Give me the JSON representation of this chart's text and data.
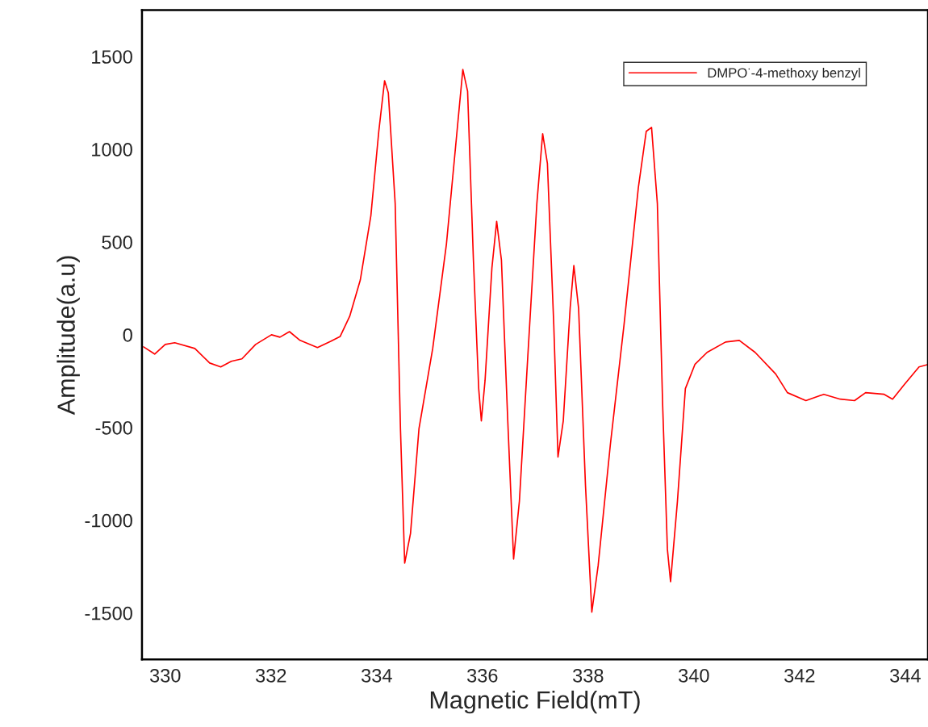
{
  "chart_data": {
    "type": "line",
    "xlabel": "Magnetic Field(mT)",
    "ylabel": "Amplitude(a.u)",
    "x": [
      329.59,
      329.8,
      330.0,
      330.18,
      330.56,
      330.84,
      331.05,
      331.25,
      331.45,
      331.71,
      332.01,
      332.17,
      332.35,
      332.55,
      332.88,
      333.13,
      333.31,
      333.49,
      333.69,
      333.89,
      334.04,
      334.15,
      334.22,
      334.35,
      334.45,
      334.53,
      334.64,
      334.8,
      335.06,
      335.32,
      335.52,
      335.63,
      335.72,
      335.83,
      335.93,
      335.98,
      336.05,
      336.18,
      336.27,
      336.36,
      336.48,
      336.59,
      336.7,
      336.85,
      337.03,
      337.14,
      337.23,
      337.35,
      337.43,
      337.53,
      337.66,
      337.73,
      337.82,
      337.95,
      338.07,
      338.19,
      338.42,
      338.68,
      338.95,
      339.1,
      339.2,
      339.31,
      339.41,
      339.5,
      339.56,
      339.69,
      339.84,
      340.02,
      340.25,
      340.6,
      340.86,
      341.16,
      341.55,
      341.77,
      342.12,
      342.46,
      342.77,
      343.04,
      343.25,
      343.6,
      343.76,
      343.98,
      344.26,
      344.43
    ],
    "series": [
      {
        "name": "DMPO$^{·}$-4-methoxy benzyl",
        "color": "#ff0000",
        "values": [
          -65,
          -104,
          -52,
          -43,
          -74,
          -152,
          -173,
          -143,
          -130,
          -52,
          0,
          -13,
          17,
          -30,
          -69,
          -35,
          -9,
          100,
          295,
          642,
          1097,
          1370,
          1305,
          707,
          -507,
          -1231,
          -1071,
          -507,
          -74,
          490,
          1097,
          1430,
          1313,
          403,
          -290,
          -464,
          -247,
          360,
          611,
          403,
          -464,
          -1209,
          -897,
          -160,
          707,
          1084,
          923,
          56,
          -659,
          -464,
          143,
          373,
          143,
          -811,
          -1495,
          -1244,
          -594,
          56,
          793,
          1097,
          1118,
          707,
          -377,
          -1157,
          -1331,
          -897,
          -290,
          -160,
          -95,
          -39,
          -30,
          -95,
          -212,
          -312,
          -355,
          -321,
          -347,
          -355,
          -312,
          -321,
          -347,
          -269,
          -173,
          -160
        ]
      }
    ],
    "xlim": [
      329.56,
      344.43
    ],
    "ylim": [
      -1750,
      1750
    ],
    "xticks": [
      330,
      332,
      334,
      336,
      338,
      340,
      342,
      344
    ],
    "yticks": [
      -1500,
      -1000,
      -500,
      0,
      500,
      1000,
      1500
    ],
    "grid": false,
    "legend": "top right",
    "marker": "none",
    "line_style": "solid"
  }
}
